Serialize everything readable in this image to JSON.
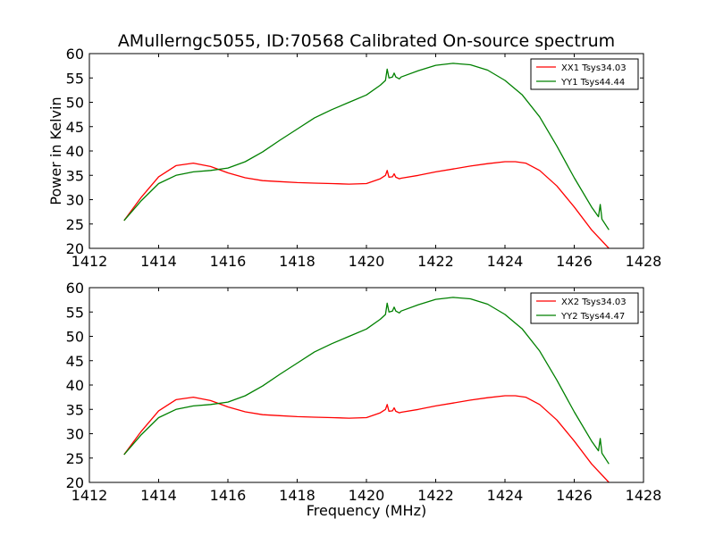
{
  "chart_data": [
    {
      "type": "line",
      "title": "AMullerngc5055, ID:70568 Calibrated On-source spectrum",
      "xlabel": "",
      "ylabel": "Power in Kelvin",
      "xlim": [
        1412,
        1428
      ],
      "ylim": [
        20,
        60
      ],
      "xticks": [
        1412,
        1414,
        1416,
        1418,
        1420,
        1422,
        1424,
        1426,
        1428
      ],
      "yticks": [
        20,
        25,
        30,
        35,
        40,
        45,
        50,
        55,
        60
      ],
      "grid": false,
      "legend_position": "top-right",
      "series": [
        {
          "name": "XX1 Tsys34.03",
          "color": "#ff0000",
          "x": [
            1413.0,
            1413.5,
            1414.0,
            1414.5,
            1415.0,
            1415.5,
            1416.0,
            1416.5,
            1417.0,
            1417.5,
            1418.0,
            1418.5,
            1419.0,
            1419.5,
            1420.0,
            1420.4,
            1420.55,
            1420.6,
            1420.65,
            1420.75,
            1420.8,
            1420.85,
            1420.95,
            1421.0,
            1421.5,
            1422.0,
            1422.5,
            1423.0,
            1423.5,
            1424.0,
            1424.3,
            1424.6,
            1425.0,
            1425.5,
            1426.0,
            1426.5,
            1427.0
          ],
          "y": [
            25.7,
            30.5,
            34.7,
            37.0,
            37.5,
            36.8,
            35.5,
            34.5,
            33.9,
            33.7,
            33.5,
            33.4,
            33.3,
            33.2,
            33.3,
            34.3,
            35.0,
            36.0,
            34.6,
            34.7,
            35.3,
            34.6,
            34.3,
            34.4,
            35.0,
            35.7,
            36.3,
            36.9,
            37.4,
            37.8,
            37.8,
            37.5,
            36.0,
            32.8,
            28.5,
            23.8,
            20.0
          ]
        },
        {
          "name": "YY1 Tsys44.44",
          "color": "#008000",
          "x": [
            1413.0,
            1413.5,
            1414.0,
            1414.5,
            1415.0,
            1415.5,
            1416.0,
            1416.5,
            1417.0,
            1417.5,
            1418.0,
            1418.5,
            1419.0,
            1419.5,
            1420.0,
            1420.4,
            1420.55,
            1420.6,
            1420.65,
            1420.75,
            1420.8,
            1420.85,
            1420.95,
            1421.0,
            1421.5,
            1422.0,
            1422.5,
            1423.0,
            1423.5,
            1424.0,
            1424.5,
            1425.0,
            1425.5,
            1426.0,
            1426.5,
            1426.7,
            1426.75,
            1426.8,
            1427.0
          ],
          "y": [
            25.7,
            29.8,
            33.3,
            35.0,
            35.7,
            36.0,
            36.5,
            37.8,
            39.8,
            42.2,
            44.5,
            46.8,
            48.5,
            50.0,
            51.5,
            53.5,
            54.5,
            56.8,
            55.0,
            55.2,
            56.0,
            55.2,
            54.8,
            55.2,
            56.5,
            57.6,
            58.0,
            57.7,
            56.6,
            54.5,
            51.5,
            47.0,
            41.0,
            34.5,
            28.5,
            26.5,
            29.0,
            26.0,
            23.8
          ]
        }
      ]
    },
    {
      "type": "line",
      "title": "",
      "xlabel": "Frequency (MHz)",
      "ylabel": "",
      "xlim": [
        1412,
        1428
      ],
      "ylim": [
        20,
        60
      ],
      "xticks": [
        1412,
        1414,
        1416,
        1418,
        1420,
        1422,
        1424,
        1426,
        1428
      ],
      "yticks": [
        20,
        25,
        30,
        35,
        40,
        45,
        50,
        55,
        60
      ],
      "grid": false,
      "legend_position": "top-right",
      "series": [
        {
          "name": "XX2 Tsys34.03",
          "color": "#ff0000",
          "x": [
            1413.0,
            1413.5,
            1414.0,
            1414.5,
            1415.0,
            1415.5,
            1416.0,
            1416.5,
            1417.0,
            1417.5,
            1418.0,
            1418.5,
            1419.0,
            1419.5,
            1420.0,
            1420.4,
            1420.55,
            1420.6,
            1420.65,
            1420.75,
            1420.8,
            1420.85,
            1420.95,
            1421.0,
            1421.5,
            1422.0,
            1422.5,
            1423.0,
            1423.5,
            1424.0,
            1424.3,
            1424.6,
            1425.0,
            1425.5,
            1426.0,
            1426.5,
            1427.0
          ],
          "y": [
            25.7,
            30.5,
            34.7,
            37.0,
            37.5,
            36.8,
            35.5,
            34.5,
            33.9,
            33.7,
            33.5,
            33.4,
            33.3,
            33.2,
            33.3,
            34.3,
            35.0,
            36.0,
            34.6,
            34.7,
            35.3,
            34.6,
            34.3,
            34.4,
            35.0,
            35.7,
            36.3,
            36.9,
            37.4,
            37.8,
            37.8,
            37.5,
            36.0,
            32.8,
            28.5,
            23.8,
            20.0
          ]
        },
        {
          "name": "YY2 Tsys44.47",
          "color": "#008000",
          "x": [
            1413.0,
            1413.5,
            1414.0,
            1414.5,
            1415.0,
            1415.5,
            1416.0,
            1416.5,
            1417.0,
            1417.5,
            1418.0,
            1418.5,
            1419.0,
            1419.5,
            1420.0,
            1420.4,
            1420.55,
            1420.6,
            1420.65,
            1420.75,
            1420.8,
            1420.85,
            1420.95,
            1421.0,
            1421.5,
            1422.0,
            1422.5,
            1423.0,
            1423.5,
            1424.0,
            1424.5,
            1425.0,
            1425.5,
            1426.0,
            1426.5,
            1426.7,
            1426.75,
            1426.8,
            1427.0
          ],
          "y": [
            25.7,
            29.8,
            33.3,
            35.0,
            35.7,
            36.0,
            36.5,
            37.8,
            39.8,
            42.2,
            44.5,
            46.8,
            48.5,
            50.0,
            51.5,
            53.5,
            54.5,
            56.8,
            55.0,
            55.2,
            56.0,
            55.2,
            54.8,
            55.2,
            56.5,
            57.6,
            58.0,
            57.7,
            56.6,
            54.5,
            51.5,
            47.0,
            41.0,
            34.5,
            28.5,
            26.5,
            29.0,
            26.0,
            23.8
          ]
        }
      ]
    }
  ]
}
